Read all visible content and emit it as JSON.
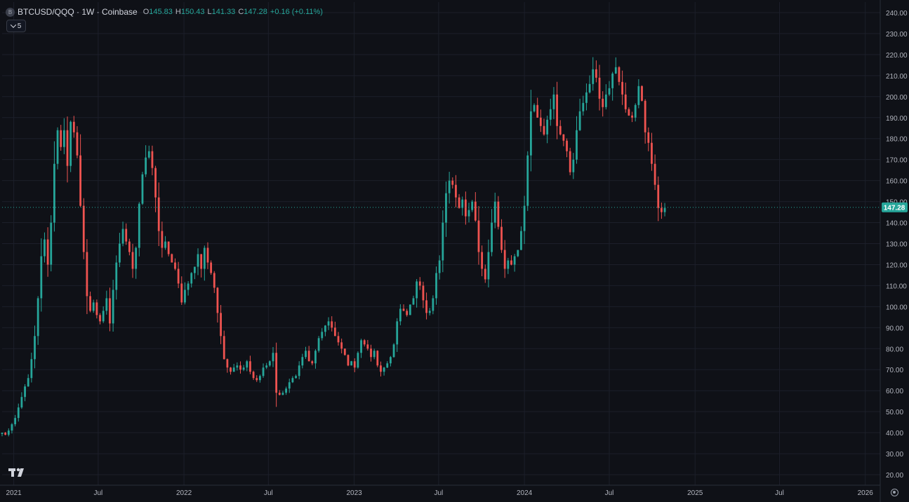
{
  "header": {
    "symbol_badge": "B",
    "title": "BTCUSD/QQQ · 1W · Coinbase",
    "open_label": "O",
    "open": "145.83",
    "high_label": "H",
    "high": "150.43",
    "low_label": "L",
    "low": "141.33",
    "close_label": "C",
    "close": "147.28",
    "change": "+0.16 (+0.11%)"
  },
  "indicators_toggle": {
    "count": "5"
  },
  "price_label": "147.28",
  "colors": {
    "up": "#26a69a",
    "down": "#ef5350",
    "background": "#0f1117",
    "grid": "#1c1f2a",
    "axis_text": "#b2b5be"
  },
  "icons": {
    "logo": "tradingview-logo-icon",
    "settings": "gear-icon"
  },
  "chart_data": {
    "type": "candlestick",
    "interval": "1W",
    "x_range": [
      "2020-12-07",
      "2026-02-02"
    ],
    "y_range": [
      15,
      245
    ],
    "grid": true,
    "x_ticks": [
      {
        "date": "2021-01-01",
        "label": "2021"
      },
      {
        "date": "2021-07-01",
        "label": "Jul"
      },
      {
        "date": "2022-01-01",
        "label": "2022"
      },
      {
        "date": "2022-07-01",
        "label": "Jul"
      },
      {
        "date": "2023-01-01",
        "label": "2023"
      },
      {
        "date": "2023-07-01",
        "label": "Jul"
      },
      {
        "date": "2024-01-01",
        "label": "2024"
      },
      {
        "date": "2024-07-01",
        "label": "Jul"
      },
      {
        "date": "2025-01-01",
        "label": "2025"
      },
      {
        "date": "2025-07-01",
        "label": "Jul"
      },
      {
        "date": "2026-01-01",
        "label": "2026"
      }
    ],
    "y_ticks": [
      20,
      30,
      40,
      50,
      60,
      70,
      80,
      90,
      100,
      110,
      120,
      130,
      140,
      150,
      160,
      170,
      180,
      190,
      200,
      210,
      220,
      230,
      240
    ],
    "y_tick_labels": [
      "20.00",
      "30.00",
      "40.00",
      "50.00",
      "60.00",
      "70.00",
      "80.00",
      "90.00",
      "100.00",
      "110.00",
      "120.00",
      "130.00",
      "140.00",
      "150.00",
      "160.00",
      "170.00",
      "180.00",
      "190.00",
      "200.00",
      "210.00",
      "220.00",
      "230.00",
      "240.00"
    ],
    "last_price": 147.28,
    "start_date": "2020-12-07",
    "close_series": [
      40,
      39,
      41,
      44,
      47,
      52,
      57,
      62,
      66,
      75,
      86,
      104,
      124,
      132,
      120,
      140,
      168,
      184,
      176,
      184,
      167,
      188,
      183,
      172,
      148,
      126,
      105,
      98,
      102,
      96,
      93,
      98,
      104,
      92,
      108,
      121,
      130,
      137,
      131,
      126,
      118,
      128,
      149,
      163,
      171,
      174,
      166,
      152,
      136,
      128,
      131,
      125,
      121,
      118,
      111,
      102,
      108,
      111,
      116,
      119,
      125,
      118,
      128,
      121,
      116,
      109,
      97,
      86,
      75,
      71,
      69,
      71,
      72,
      70,
      71,
      74,
      69,
      66,
      65,
      67,
      71,
      72,
      74,
      78,
      59,
      58,
      59,
      61,
      64,
      66,
      67,
      72,
      76,
      79,
      74,
      73,
      79,
      85,
      88,
      91,
      93,
      90,
      86,
      83,
      80,
      77,
      72,
      74,
      71,
      78,
      84,
      82,
      80,
      76,
      79,
      72,
      69,
      71,
      73,
      76,
      82,
      93,
      99,
      98,
      96,
      101,
      104,
      112,
      110,
      103,
      97,
      98,
      104,
      116,
      122,
      140,
      154,
      160,
      158,
      152,
      147,
      151,
      143,
      146,
      150,
      141,
      126,
      118,
      113,
      126,
      140,
      150,
      138,
      127,
      118,
      122,
      120,
      124,
      127,
      136,
      148,
      172,
      193,
      196,
      190,
      186,
      182,
      189,
      194,
      201,
      186,
      182,
      179,
      174,
      164,
      170,
      184,
      193,
      197,
      202,
      206,
      213,
      209,
      199,
      195,
      201,
      204,
      211,
      214,
      207,
      201,
      194,
      191,
      190,
      196,
      205,
      198,
      183,
      178,
      168,
      158,
      147,
      145,
      147
    ]
  }
}
